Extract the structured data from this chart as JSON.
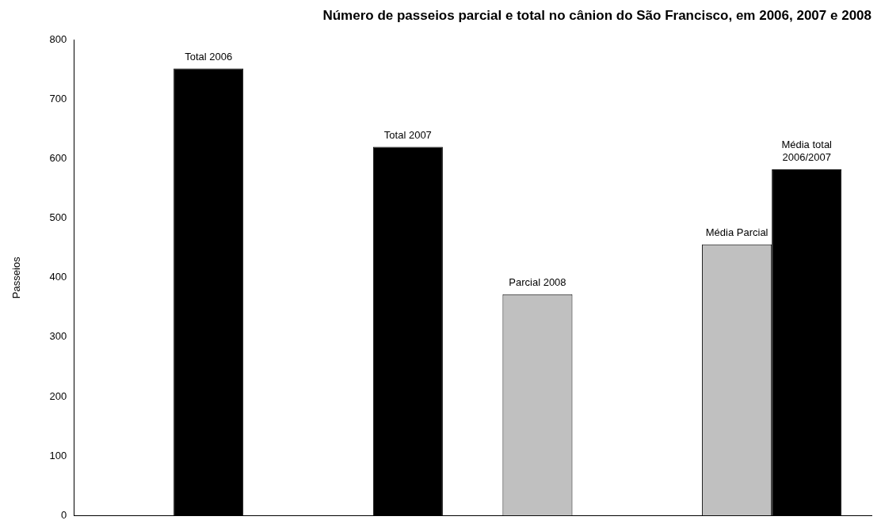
{
  "chart_data": {
    "type": "bar",
    "title": "Número de passeios parcial e total no cânion do São Francisco, em 2006, 2007 e 2008",
    "ylabel": "Passeios",
    "categories": [
      null,
      null,
      null,
      null
    ],
    "series": [
      {
        "color": "#c0c0c0",
        "values": [
          null,
          null,
          372,
          456
        ],
        "value_labels": [
          null,
          null,
          "Parcial 2008",
          "Média Parcial"
        ]
      },
      {
        "color": "#000000",
        "values": [
          752,
          620,
          null,
          582
        ],
        "value_labels": [
          "Total 2006",
          "Total 2007",
          null,
          "Média total 2006/2007"
        ]
      }
    ],
    "ylim": [
      0,
      800
    ],
    "yticks": [
      0,
      100,
      200,
      300,
      400,
      500,
      600,
      700,
      800
    ],
    "grid": false,
    "legend": false
  }
}
